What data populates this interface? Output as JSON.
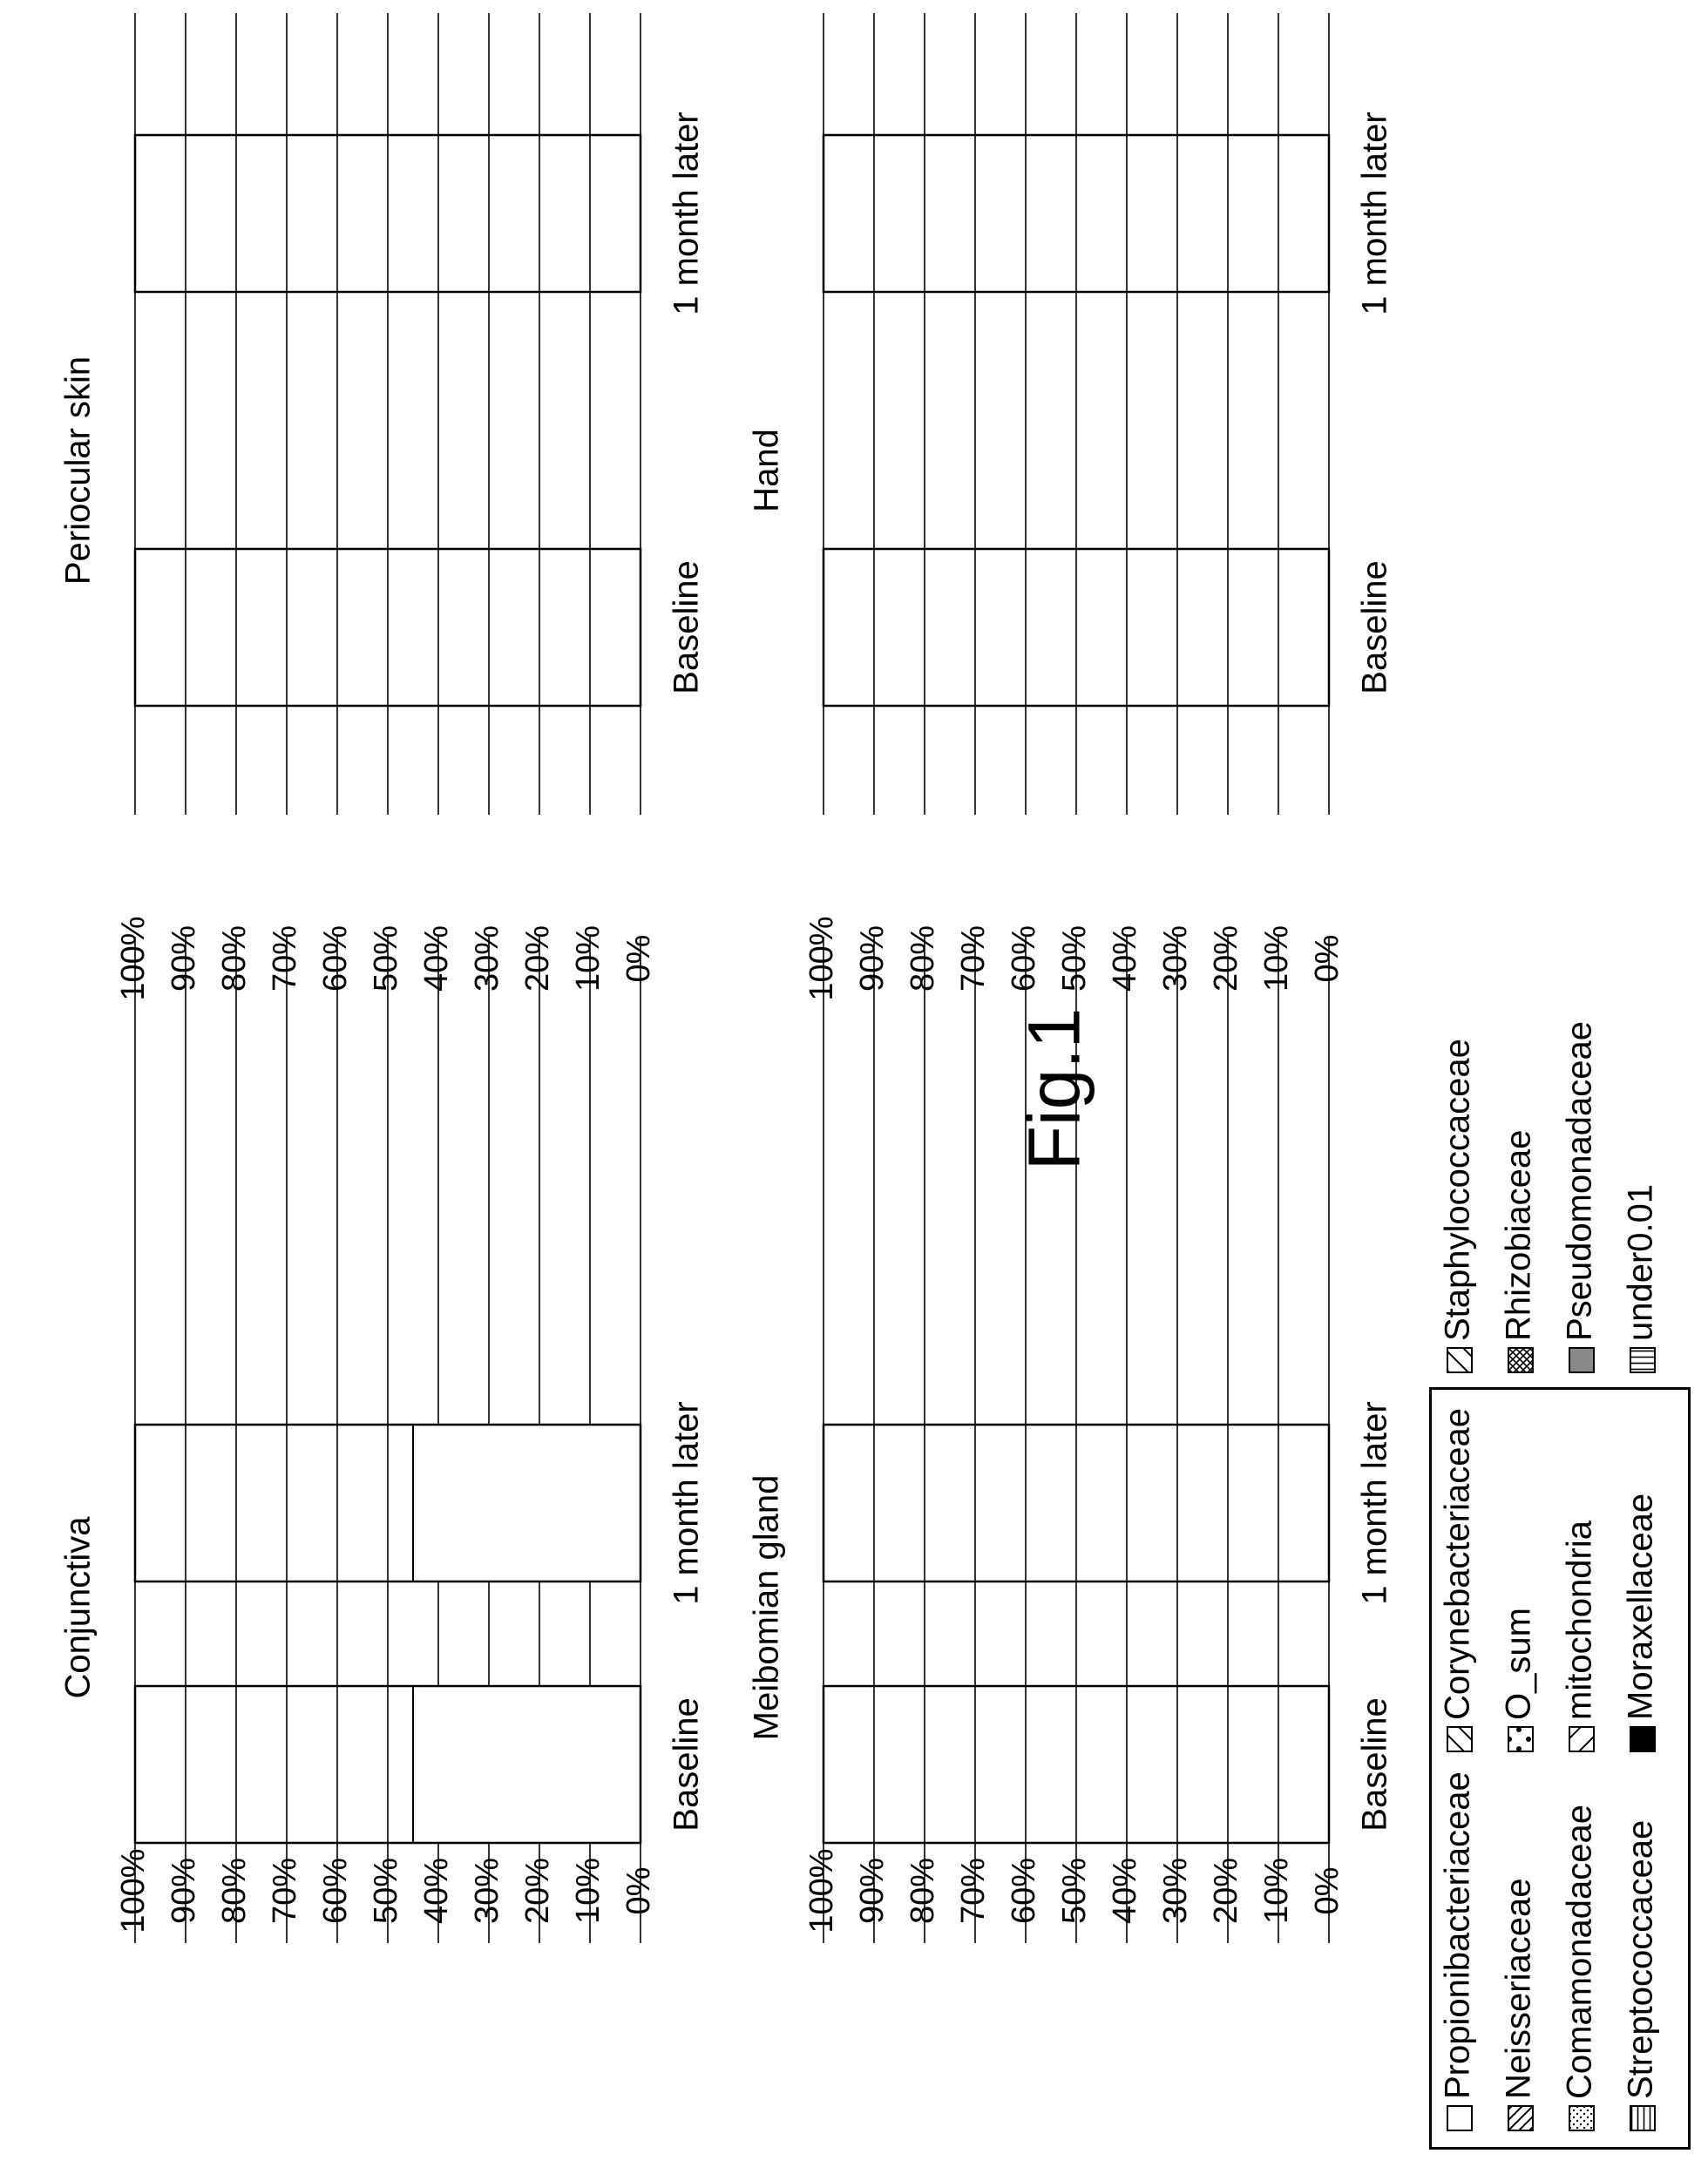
{
  "figure": {
    "title": "Fig.1"
  },
  "ui": {
    "stacking_order": [
      "Propionibacteriaceae",
      "Corynebacteriaceae",
      "Staphylococcaceae",
      "Neisseriaceae",
      "O_sum",
      "Rhizobiaceae",
      "Comamonadaceae",
      "mitochondria",
      "Pseudomonadaceae",
      "Streptococcaceae",
      "Moraxellaceae",
      "under0.01"
    ]
  },
  "legend": {
    "entries": [
      {
        "name": "Propionibacteriaceae",
        "pattern": "blank",
        "color": "#ffffff"
      },
      {
        "name": "Neisseriaceae",
        "pattern": "diag-right-dense",
        "color": "#000000"
      },
      {
        "name": "Comamonadaceae",
        "pattern": "fine-dots",
        "color": "#000000"
      },
      {
        "name": "Streptococcaceae",
        "pattern": "vertical-lines",
        "color": "#000000"
      },
      {
        "name": "Corynebacteriaceae",
        "pattern": "diag-left-sparse",
        "color": "#000000"
      },
      {
        "name": "O_sum",
        "pattern": "large-dots",
        "color": "#000000"
      },
      {
        "name": "mitochondria",
        "pattern": "diag-right-sparse",
        "color": "#000000"
      },
      {
        "name": "Moraxellaceae",
        "pattern": "solid-black",
        "color": "#000000"
      },
      {
        "name": "Staphylococcaceae",
        "pattern": "diag-left-sparse",
        "color": "#000000"
      },
      {
        "name": "Rhizobiaceae",
        "pattern": "crosshatch",
        "color": "#000000"
      },
      {
        "name": "Pseudomonadaceae",
        "pattern": "solid-gray",
        "color": "#888888"
      },
      {
        "name": "under0.01",
        "pattern": "horizontal-lines",
        "color": "#000000"
      }
    ]
  },
  "chart_data": [
    {
      "type": "bar",
      "stacked": true,
      "title": "Conjunctiva",
      "categories": [
        "Baseline",
        "1 month later"
      ],
      "ylim": [
        0,
        100
      ],
      "yticks": [
        "0%",
        "10%",
        "20%",
        "30%",
        "40%",
        "50%",
        "60%",
        "70%",
        "80%",
        "90%",
        "100%"
      ],
      "grid": true,
      "series": [
        {
          "name": "Propionibacteriaceae",
          "values": [
            45,
            45
          ]
        },
        {
          "name": "Corynebacteriaceae",
          "values": [
            0,
            0
          ]
        },
        {
          "name": "Staphylococcaceae",
          "values": [
            0,
            0
          ]
        },
        {
          "name": "Neisseriaceae",
          "values": [
            0,
            0
          ]
        },
        {
          "name": "O_sum",
          "values": [
            0,
            0
          ]
        },
        {
          "name": "Rhizobiaceae",
          "values": [
            0,
            0
          ]
        },
        {
          "name": "Comamonadaceae",
          "values": [
            0,
            0
          ]
        },
        {
          "name": "mitochondria",
          "values": [
            0,
            0
          ]
        },
        {
          "name": "Pseudomonadaceae",
          "values": [
            0,
            0
          ]
        },
        {
          "name": "Streptococcaceae",
          "values": [
            0,
            0
          ]
        },
        {
          "name": "Moraxellaceae",
          "values": [
            0,
            0
          ]
        },
        {
          "name": "under0.01",
          "values": [
            0,
            0
          ]
        }
      ]
    },
    {
      "type": "bar",
      "stacked": true,
      "title": "Periocular skin",
      "categories": [
        "Baseline",
        "1 month later"
      ],
      "ylim": [
        0,
        100
      ],
      "yticks": [
        "0%",
        "10%",
        "20%",
        "30%",
        "40%",
        "50%",
        "60%",
        "70%",
        "80%",
        "90%",
        "100%"
      ],
      "grid": true,
      "series": [
        {
          "name": "Propionibacteriaceae",
          "values": [
            0,
            0
          ]
        },
        {
          "name": "Corynebacteriaceae",
          "values": [
            0,
            0
          ]
        },
        {
          "name": "Staphylococcaceae",
          "values": [
            0,
            0
          ]
        },
        {
          "name": "Neisseriaceae",
          "values": [
            0,
            0
          ]
        },
        {
          "name": "O_sum",
          "values": [
            0,
            0
          ]
        },
        {
          "name": "Rhizobiaceae",
          "values": [
            0,
            0
          ]
        },
        {
          "name": "Comamonadaceae",
          "values": [
            0,
            0
          ]
        },
        {
          "name": "mitochondria",
          "values": [
            0,
            0
          ]
        },
        {
          "name": "Pseudomonadaceae",
          "values": [
            0,
            0
          ]
        },
        {
          "name": "Streptococcaceae",
          "values": [
            0,
            0
          ]
        },
        {
          "name": "Moraxellaceae",
          "values": [
            0,
            0
          ]
        },
        {
          "name": "under0.01",
          "values": [
            0,
            0
          ]
        }
      ]
    },
    {
      "type": "bar",
      "stacked": true,
      "title": "Meibomian gland",
      "categories": [
        "Baseline",
        "1 month later"
      ],
      "ylim": [
        0,
        100
      ],
      "yticks": [
        "0%",
        "10%",
        "20%",
        "30%",
        "40%",
        "50%",
        "60%",
        "70%",
        "80%",
        "90%",
        "100%"
      ],
      "grid": true,
      "series": [
        {
          "name": "Propionibacteriaceae",
          "values": [
            0,
            0
          ]
        },
        {
          "name": "Corynebacteriaceae",
          "values": [
            0,
            0
          ]
        },
        {
          "name": "Staphylococcaceae",
          "values": [
            0,
            0
          ]
        },
        {
          "name": "Neisseriaceae",
          "values": [
            0,
            0
          ]
        },
        {
          "name": "O_sum",
          "values": [
            0,
            0
          ]
        },
        {
          "name": "Rhizobiaceae",
          "values": [
            0,
            0
          ]
        },
        {
          "name": "Comamonadaceae",
          "values": [
            0,
            0
          ]
        },
        {
          "name": "mitochondria",
          "values": [
            0,
            0
          ]
        },
        {
          "name": "Pseudomonadaceae",
          "values": [
            0,
            0
          ]
        },
        {
          "name": "Streptococcaceae",
          "values": [
            0,
            0
          ]
        },
        {
          "name": "Moraxellaceae",
          "values": [
            0,
            0
          ]
        },
        {
          "name": "under0.01",
          "values": [
            0,
            0
          ]
        }
      ]
    },
    {
      "type": "bar",
      "stacked": true,
      "title": "Hand",
      "categories": [
        "Baseline",
        "1 month later"
      ],
      "ylim": [
        0,
        100
      ],
      "yticks": [
        "0%",
        "10%",
        "20%",
        "30%",
        "40%",
        "50%",
        "60%",
        "70%",
        "80%",
        "90%",
        "100%"
      ],
      "grid": true,
      "series": [
        {
          "name": "Propionibacteriaceae",
          "values": [
            0,
            0
          ]
        },
        {
          "name": "Corynebacteriaceae",
          "values": [
            0,
            0
          ]
        },
        {
          "name": "Staphylococcaceae",
          "values": [
            0,
            0
          ]
        },
        {
          "name": "Neisseriaceae",
          "values": [
            0,
            0
          ]
        },
        {
          "name": "O_sum",
          "values": [
            0,
            0
          ]
        },
        {
          "name": "Rhizobiaceae",
          "values": [
            0,
            0
          ]
        },
        {
          "name": "Comamonadaceae",
          "values": [
            0,
            0
          ]
        },
        {
          "name": "mitochondria",
          "values": [
            0,
            0
          ]
        },
        {
          "name": "Pseudomonadaceae",
          "values": [
            0,
            0
          ]
        },
        {
          "name": "Streptococcaceae",
          "values": [
            0,
            0
          ]
        },
        {
          "name": "Moraxellaceae",
          "values": [
            0,
            0
          ]
        },
        {
          "name": "under0.01",
          "values": [
            0,
            0
          ]
        }
      ]
    }
  ]
}
